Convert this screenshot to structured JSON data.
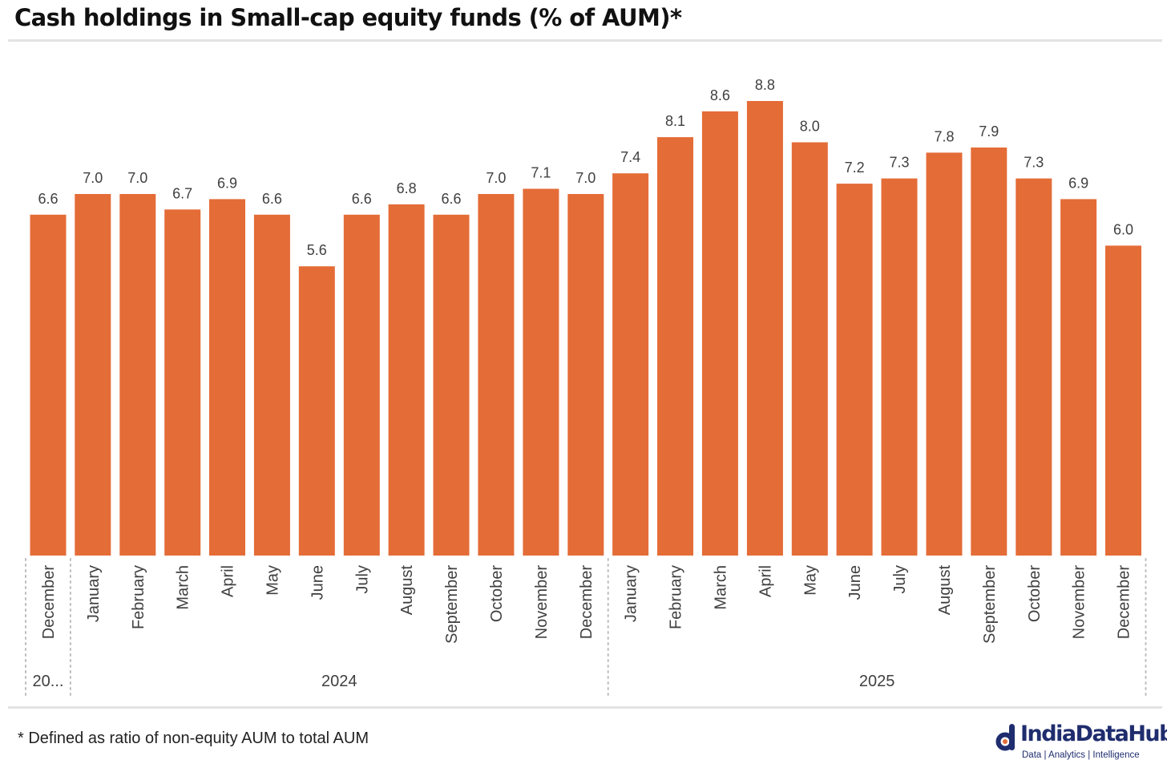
{
  "header": {
    "title": "Cash holdings in Small-cap equity funds (% of AUM)*"
  },
  "footer": {
    "footnote": "* Defined as ratio of non-equity AUM to total AUM",
    "brand": "IndiaDataHub",
    "tagline": "Data | Analytics | Intelligence"
  },
  "colors": {
    "bar": "#e46c37",
    "label": "#404040",
    "axis": "#bdbdbd",
    "brand": "#1f2d6e"
  },
  "chart_data": {
    "type": "bar",
    "title": "Cash holdings in Small-cap equity funds (% of AUM)*",
    "xlabel": "",
    "ylabel": "",
    "ylim": [
      0,
      8.8
    ],
    "grid": false,
    "legend": "none",
    "categories": [
      "December",
      "January",
      "February",
      "March",
      "April",
      "May",
      "June",
      "July",
      "August",
      "September",
      "October",
      "November",
      "December",
      "January",
      "February",
      "March",
      "April",
      "May",
      "June",
      "July",
      "August",
      "September",
      "October",
      "November",
      "December"
    ],
    "values": [
      6.6,
      7.0,
      7.0,
      6.7,
      6.9,
      6.6,
      5.6,
      6.6,
      6.8,
      6.6,
      7.0,
      7.1,
      7.0,
      7.4,
      8.1,
      8.6,
      8.8,
      8.0,
      7.2,
      7.3,
      7.8,
      7.9,
      7.3,
      6.9,
      6.0
    ],
    "value_labels": [
      "6.6",
      "7.0",
      "7.0",
      "6.7",
      "6.9",
      "6.6",
      "5.6",
      "6.6",
      "6.8",
      "6.6",
      "7.0",
      "7.1",
      "7.0",
      "7.4",
      "8.1",
      "8.6",
      "8.8",
      "8.0",
      "7.2",
      "7.3",
      "7.8",
      "7.9",
      "7.3",
      "6.9",
      "6.0"
    ],
    "year_groups": [
      {
        "label": "20...",
        "start": 0,
        "end": 0
      },
      {
        "label": "2024",
        "start": 1,
        "end": 12
      },
      {
        "label": "2025",
        "start": 13,
        "end": 24
      }
    ]
  }
}
